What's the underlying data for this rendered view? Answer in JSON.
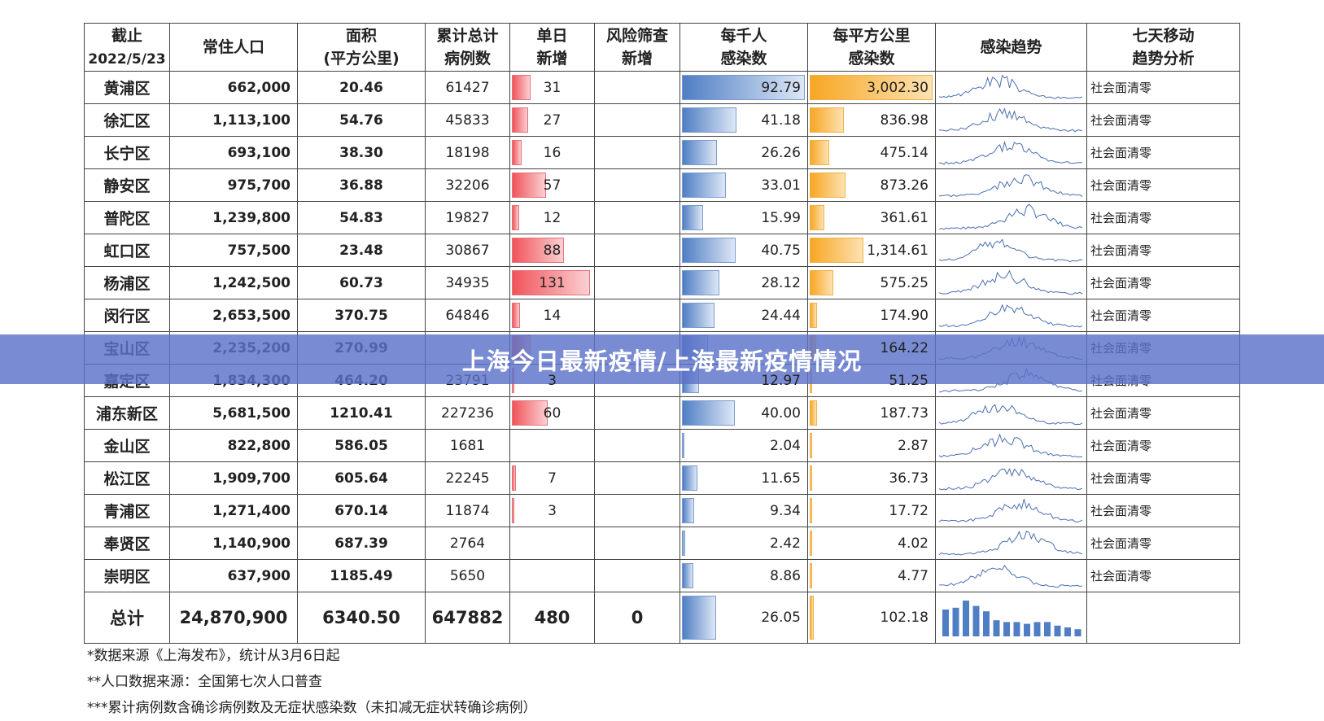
{
  "headers": {
    "date": [
      "截止",
      "2022/5/23"
    ],
    "population": "常住人口",
    "area": [
      "面积",
      "(平方公里)"
    ],
    "cumulative": [
      "累计总计",
      "病例数"
    ],
    "daily": [
      "单日",
      "新增"
    ],
    "screening": [
      "风险筛查",
      "新增"
    ],
    "per_thousand": [
      "每千人",
      "感染数"
    ],
    "per_km2": [
      "每平方公里",
      "感染数"
    ],
    "trend": "感染趋势",
    "analysis": [
      "七天移动",
      "趋势分析"
    ]
  },
  "rows": [
    {
      "district": "黄浦区",
      "population": "662,000",
      "area": "20.46",
      "cumulative": "61427",
      "daily": "31",
      "screening": "",
      "per_thousand": "92.79",
      "per_km2": "3,002.30",
      "analysis": "社会面清零",
      "daily_v": 31,
      "pt_v": 92.79,
      "pk_v": 3002.3
    },
    {
      "district": "徐汇区",
      "population": "1,113,100",
      "area": "54.76",
      "cumulative": "45833",
      "daily": "27",
      "screening": "",
      "per_thousand": "41.18",
      "per_km2": "836.98",
      "analysis": "社会面清零",
      "daily_v": 27,
      "pt_v": 41.18,
      "pk_v": 836.98
    },
    {
      "district": "长宁区",
      "population": "693,100",
      "area": "38.30",
      "cumulative": "18198",
      "daily": "16",
      "screening": "",
      "per_thousand": "26.26",
      "per_km2": "475.14",
      "analysis": "社会面清零",
      "daily_v": 16,
      "pt_v": 26.26,
      "pk_v": 475.14
    },
    {
      "district": "静安区",
      "population": "975,700",
      "area": "36.88",
      "cumulative": "32206",
      "daily": "57",
      "screening": "",
      "per_thousand": "33.01",
      "per_km2": "873.26",
      "analysis": "社会面清零",
      "daily_v": 57,
      "pt_v": 33.01,
      "pk_v": 873.26
    },
    {
      "district": "普陀区",
      "population": "1,239,800",
      "area": "54.83",
      "cumulative": "19827",
      "daily": "12",
      "screening": "",
      "per_thousand": "15.99",
      "per_km2": "361.61",
      "analysis": "社会面清零",
      "daily_v": 12,
      "pt_v": 15.99,
      "pk_v": 361.61
    },
    {
      "district": "虹口区",
      "population": "757,500",
      "area": "23.48",
      "cumulative": "30867",
      "daily": "88",
      "screening": "",
      "per_thousand": "40.75",
      "per_km2": "1,314.61",
      "analysis": "社会面清零",
      "daily_v": 88,
      "pt_v": 40.75,
      "pk_v": 1314.61
    },
    {
      "district": "杨浦区",
      "population": "1,242,500",
      "area": "60.73",
      "cumulative": "34935",
      "daily": "131",
      "screening": "",
      "per_thousand": "28.12",
      "per_km2": "575.25",
      "analysis": "社会面清零",
      "daily_v": 131,
      "pt_v": 28.12,
      "pk_v": 575.25
    },
    {
      "district": "闵行区",
      "population": "2,653,500",
      "area": "370.75",
      "cumulative": "64846",
      "daily": "14",
      "screening": "",
      "per_thousand": "24.44",
      "per_km2": "174.90",
      "analysis": "社会面清零",
      "daily_v": 14,
      "pt_v": 24.44,
      "pk_v": 174.9
    },
    {
      "district": "宝山区",
      "population": "2,235,200",
      "area": "270.99",
      "cumulative": "",
      "daily": "",
      "screening": "",
      "per_thousand": "",
      "per_km2": "164.22",
      "analysis": "社会面清零",
      "daily_v": 31,
      "pt_v": 19.9,
      "pk_v": 164.22
    },
    {
      "district": "嘉定区",
      "population": "1,834,300",
      "area": "464.20",
      "cumulative": "23791",
      "daily": "3",
      "screening": "",
      "per_thousand": "12.97",
      "per_km2": "51.25",
      "analysis": "社会面清零",
      "daily_v": 3,
      "pt_v": 12.97,
      "pk_v": 51.25
    },
    {
      "district": "浦东新区",
      "population": "5,681,500",
      "area": "1210.41",
      "cumulative": "227236",
      "daily": "60",
      "screening": "",
      "per_thousand": "40.00",
      "per_km2": "187.73",
      "analysis": "社会面清零",
      "daily_v": 60,
      "pt_v": 40.0,
      "pk_v": 187.73
    },
    {
      "district": "金山区",
      "population": "822,800",
      "area": "586.05",
      "cumulative": "1681",
      "daily": "",
      "screening": "",
      "per_thousand": "2.04",
      "per_km2": "2.87",
      "analysis": "社会面清零",
      "daily_v": 0,
      "pt_v": 2.04,
      "pk_v": 2.87
    },
    {
      "district": "松江区",
      "population": "1,909,700",
      "area": "605.64",
      "cumulative": "22245",
      "daily": "7",
      "screening": "",
      "per_thousand": "11.65",
      "per_km2": "36.73",
      "analysis": "社会面清零",
      "daily_v": 7,
      "pt_v": 11.65,
      "pk_v": 36.73
    },
    {
      "district": "青浦区",
      "population": "1,271,400",
      "area": "670.14",
      "cumulative": "11874",
      "daily": "3",
      "screening": "",
      "per_thousand": "9.34",
      "per_km2": "17.72",
      "analysis": "社会面清零",
      "daily_v": 3,
      "pt_v": 9.34,
      "pk_v": 17.72
    },
    {
      "district": "奉贤区",
      "population": "1,140,900",
      "area": "687.39",
      "cumulative": "2764",
      "daily": "",
      "screening": "",
      "per_thousand": "2.42",
      "per_km2": "4.02",
      "analysis": "社会面清零",
      "daily_v": 0,
      "pt_v": 2.42,
      "pk_v": 4.02
    },
    {
      "district": "崇明区",
      "population": "637,900",
      "area": "1185.49",
      "cumulative": "5650",
      "daily": "",
      "screening": "",
      "per_thousand": "8.86",
      "per_km2": "4.77",
      "analysis": "社会面清零",
      "daily_v": 0,
      "pt_v": 8.86,
      "pk_v": 4.77
    }
  ],
  "total": {
    "label": "总计",
    "population": "24,870,900",
    "area": "6340.50",
    "cumulative": "647882",
    "daily": "480",
    "screening": "0",
    "per_thousand": "26.05",
    "per_km2": "102.18",
    "pt_v": 26.05,
    "pk_v": 102.18,
    "trend_bars": [
      30,
      32,
      40,
      34,
      28,
      18,
      16,
      16,
      14,
      16,
      16,
      12,
      10,
      8
    ]
  },
  "notes": [
    "*数据来源《上海发布》，统计从3月6日起",
    "**人口数据来源：全国第七次人口普查",
    "***累计病例数含确诊病例数及无症状感染数（未扣减无症状转确诊病例）"
  ],
  "banner": "上海今日最新疫情/上海最新疫情情况",
  "colors": {
    "daily_bar": "#f0545a",
    "per_thousand_bar": "#4f7ec4",
    "per_km2_bar": "#f8a623",
    "sparkline": "#4a6fb0",
    "banner": "#5c71c8"
  }
}
